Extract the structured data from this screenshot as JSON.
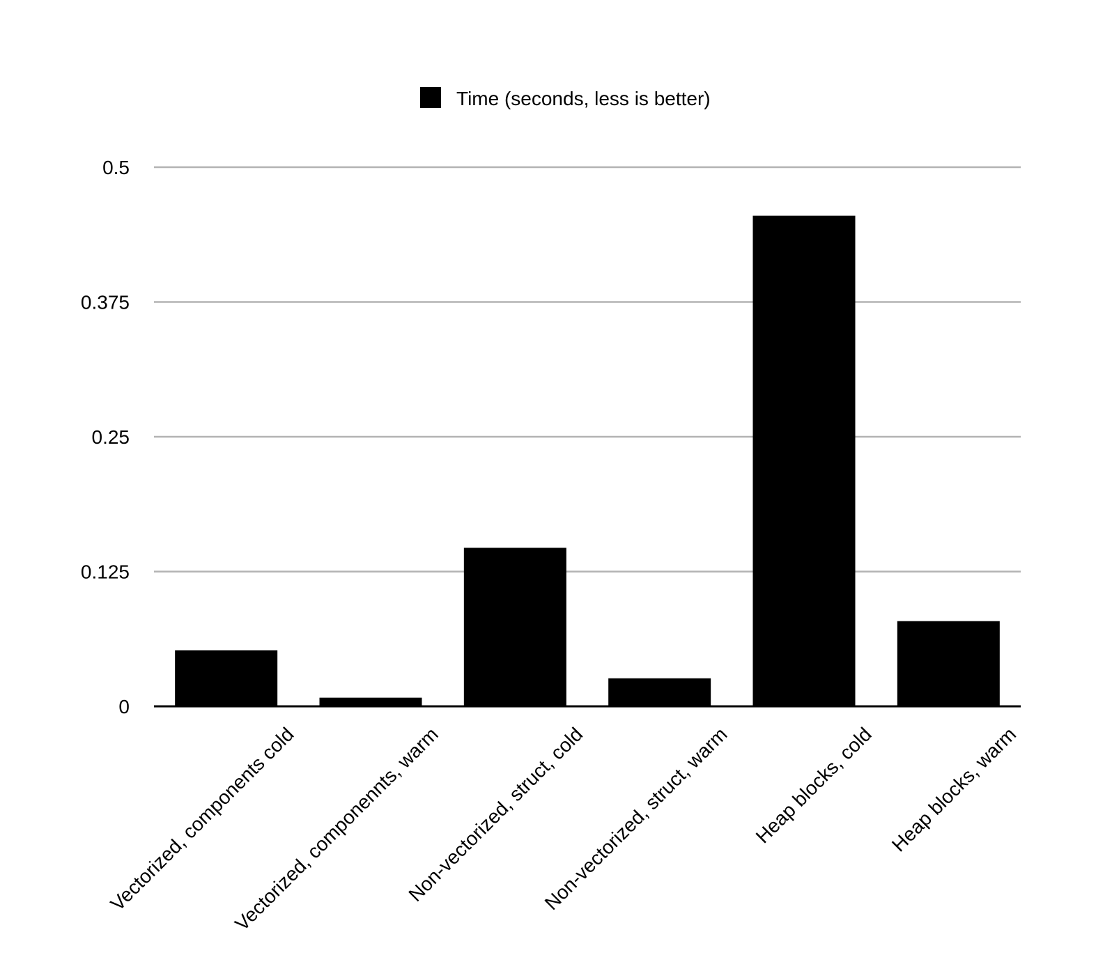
{
  "chart_data": {
    "type": "bar",
    "title": "",
    "xlabel": "",
    "ylabel": "",
    "categories": [
      "Vectorized, components cold",
      "Vectorized, componennts, warm",
      "Non-vectorized, struct, cold",
      "Non-vectorized, struct, warm",
      "Heap blocks, cold",
      "Heap blocks, warm"
    ],
    "series": [
      {
        "name": "Time (seconds, less is better)",
        "values": [
          0.052,
          0.008,
          0.147,
          0.026,
          0.455,
          0.079
        ],
        "color": "#000000"
      }
    ],
    "ylim": [
      0,
      0.5
    ],
    "yticks": [
      "0",
      "0.125",
      "0.25",
      "0.375",
      "0.5"
    ],
    "yticks_values": [
      0,
      0.125,
      0.25,
      0.375,
      0.5
    ],
    "grid": true,
    "grid_color": "#b3b3b3",
    "legend_position": "top-center"
  }
}
